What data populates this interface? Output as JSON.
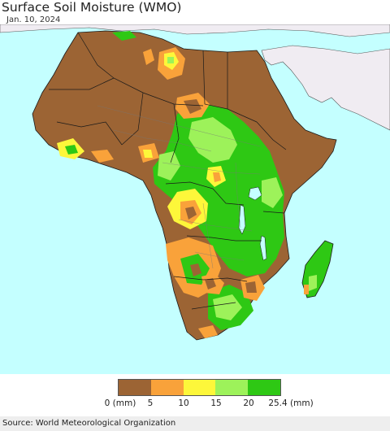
{
  "header": {
    "title": "Surface Soil Moisture (WMO)",
    "date": "Jan. 10, 2024"
  },
  "legend": {
    "bins": [
      {
        "color": "#9c6434"
      },
      {
        "color": "#f9a23a"
      },
      {
        "color": "#fdf73a"
      },
      {
        "color": "#9df25a"
      },
      {
        "color": "#2ec814"
      }
    ],
    "ticks": [
      "0 (mm)",
      "5",
      "10",
      "15",
      "20",
      "25.4 (mm)"
    ]
  },
  "footer": {
    "source": "Source: World Meteorological Organization"
  },
  "colors": {
    "ocean": "#c4ffff",
    "outside_land": "#f0ecf2",
    "border": "#1a1a1a"
  }
}
